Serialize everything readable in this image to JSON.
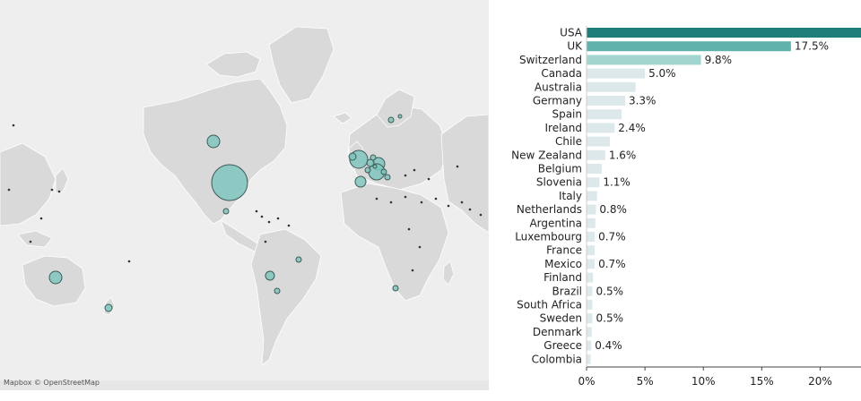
{
  "map": {
    "attribution": "Mapbox © OpenStreetMap",
    "bubble_fill": "#7fc5bd",
    "bubble_stroke": "#3d5a56",
    "land_fill": "#d9d9d9",
    "water_fill": "#eeeeee"
  },
  "chart_data": {
    "type": "bar",
    "orientation": "horizontal",
    "unit": "percent",
    "categories": [
      "USA",
      "UK",
      "Switzerland",
      "Canada",
      "Australia",
      "Germany",
      "Spain",
      "Ireland",
      "Chile",
      "New Zealand",
      "Belgium",
      "Slovenia",
      "Italy",
      "Netherlands",
      "Argentina",
      "Luxembourg",
      "France",
      "Mexico",
      "Finland",
      "Brazil",
      "South Africa",
      "Sweden",
      "Denmark",
      "Greece",
      "Colombia"
    ],
    "values": [
      26.0,
      17.5,
      9.8,
      5.0,
      4.2,
      3.3,
      3.0,
      2.4,
      2.0,
      1.6,
      1.3,
      1.1,
      0.9,
      0.8,
      0.75,
      0.7,
      0.7,
      0.7,
      0.55,
      0.5,
      0.5,
      0.5,
      0.45,
      0.4,
      0.35
    ],
    "value_labels": [
      "",
      "17.5%",
      "9.8%",
      "5.0%",
      "",
      "3.3%",
      "",
      "2.4%",
      "",
      "1.6%",
      "",
      "1.1%",
      "",
      "0.8%",
      "",
      "0.7%",
      "",
      "0.7%",
      "",
      "0.5%",
      "",
      "0.5%",
      "",
      "0.4%",
      ""
    ],
    "xticks": [
      0,
      5,
      10,
      15,
      20
    ],
    "xtick_labels": [
      "0%",
      "5%",
      "10%",
      "15%",
      "20%"
    ],
    "xlim": [
      0,
      23.5
    ],
    "title": "",
    "xlabel": "",
    "ylabel": "",
    "grid": false,
    "colors": {
      "top": "#1c7d79",
      "second": "#5fb3ac",
      "third": "#a3d5cf",
      "rest": "#dde8ea"
    }
  }
}
